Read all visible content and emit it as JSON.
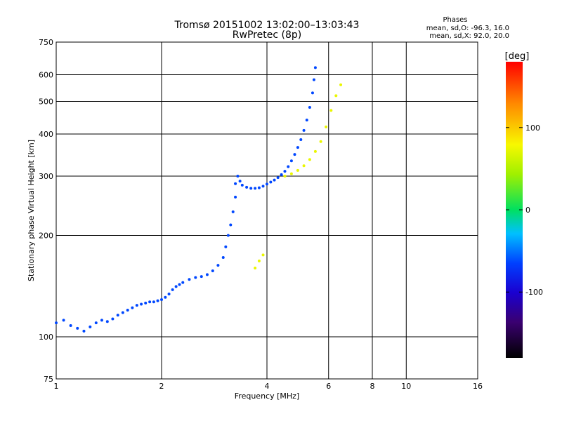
{
  "chart_data": {
    "type": "scatter",
    "title": "Tromsø 20151002 13:02:00–13:03:43",
    "subtitle": "RwPretec (8p)",
    "xlabel": "Frequency [MHz]",
    "ylabel": "Stationary phase Virtual Height [km]",
    "x_scale": "log",
    "y_scale": "log",
    "xlim": [
      1,
      16
    ],
    "ylim": [
      75,
      750
    ],
    "x_ticks": [
      1,
      2,
      4,
      6,
      8,
      10,
      16
    ],
    "y_ticks": [
      75,
      100,
      200,
      300,
      400,
      500,
      600,
      750
    ],
    "grid": true,
    "phases_info": {
      "header": "Phases",
      "line1": "mean, sd,O: -96.3, 16.0",
      "line2": "mean, sd,X:  92.0, 20.0"
    },
    "colorbar": {
      "label": "[deg]",
      "ticks": [
        100,
        0,
        -100
      ],
      "range": [
        -180,
        180
      ]
    },
    "series": [
      {
        "mode": "O",
        "phase_mean": -96.3,
        "points": [
          [
            1.0,
            110
          ],
          [
            1.05,
            112
          ],
          [
            1.1,
            108
          ],
          [
            1.15,
            106
          ],
          [
            1.2,
            104
          ],
          [
            1.25,
            107
          ],
          [
            1.3,
            110
          ],
          [
            1.35,
            112
          ],
          [
            1.4,
            111
          ],
          [
            1.45,
            113
          ],
          [
            1.5,
            116
          ],
          [
            1.55,
            118
          ],
          [
            1.6,
            120
          ],
          [
            1.65,
            122
          ],
          [
            1.7,
            124
          ],
          [
            1.75,
            125
          ],
          [
            1.8,
            126
          ],
          [
            1.85,
            127
          ],
          [
            1.9,
            127
          ],
          [
            1.95,
            128
          ],
          [
            2.0,
            129
          ],
          [
            2.05,
            131
          ],
          [
            2.1,
            134
          ],
          [
            2.15,
            138
          ],
          [
            2.2,
            141
          ],
          [
            2.25,
            143
          ],
          [
            2.3,
            145
          ],
          [
            2.4,
            148
          ],
          [
            2.5,
            150
          ],
          [
            2.6,
            151
          ],
          [
            2.7,
            153
          ],
          [
            2.8,
            157
          ],
          [
            2.9,
            163
          ],
          [
            3.0,
            172
          ],
          [
            3.05,
            185
          ],
          [
            3.1,
            200
          ],
          [
            3.15,
            215
          ],
          [
            3.2,
            235
          ],
          [
            3.25,
            260
          ],
          [
            3.25,
            285
          ],
          [
            3.3,
            300
          ],
          [
            3.35,
            290
          ],
          [
            3.4,
            282
          ],
          [
            3.5,
            278
          ],
          [
            3.6,
            276
          ],
          [
            3.7,
            276
          ],
          [
            3.8,
            277
          ],
          [
            3.9,
            280
          ],
          [
            4.0,
            284
          ],
          [
            4.1,
            288
          ],
          [
            4.2,
            292
          ],
          [
            4.3,
            297
          ],
          [
            4.4,
            303
          ],
          [
            4.5,
            310
          ],
          [
            4.6,
            320
          ],
          [
            4.7,
            333
          ],
          [
            4.8,
            348
          ],
          [
            4.9,
            365
          ],
          [
            5.0,
            385
          ],
          [
            5.1,
            410
          ],
          [
            5.2,
            440
          ],
          [
            5.3,
            480
          ],
          [
            5.4,
            530
          ],
          [
            5.45,
            580
          ],
          [
            5.5,
            630
          ]
        ]
      },
      {
        "mode": "X",
        "phase_mean": 92.0,
        "points": [
          [
            3.7,
            160
          ],
          [
            3.8,
            168
          ],
          [
            3.9,
            175
          ],
          [
            4.5,
            300
          ],
          [
            4.7,
            305
          ],
          [
            4.9,
            312
          ],
          [
            5.1,
            322
          ],
          [
            5.3,
            336
          ],
          [
            5.5,
            355
          ],
          [
            5.7,
            380
          ],
          [
            5.9,
            420
          ],
          [
            6.1,
            470
          ],
          [
            6.3,
            520
          ],
          [
            6.5,
            560
          ]
        ]
      }
    ]
  }
}
